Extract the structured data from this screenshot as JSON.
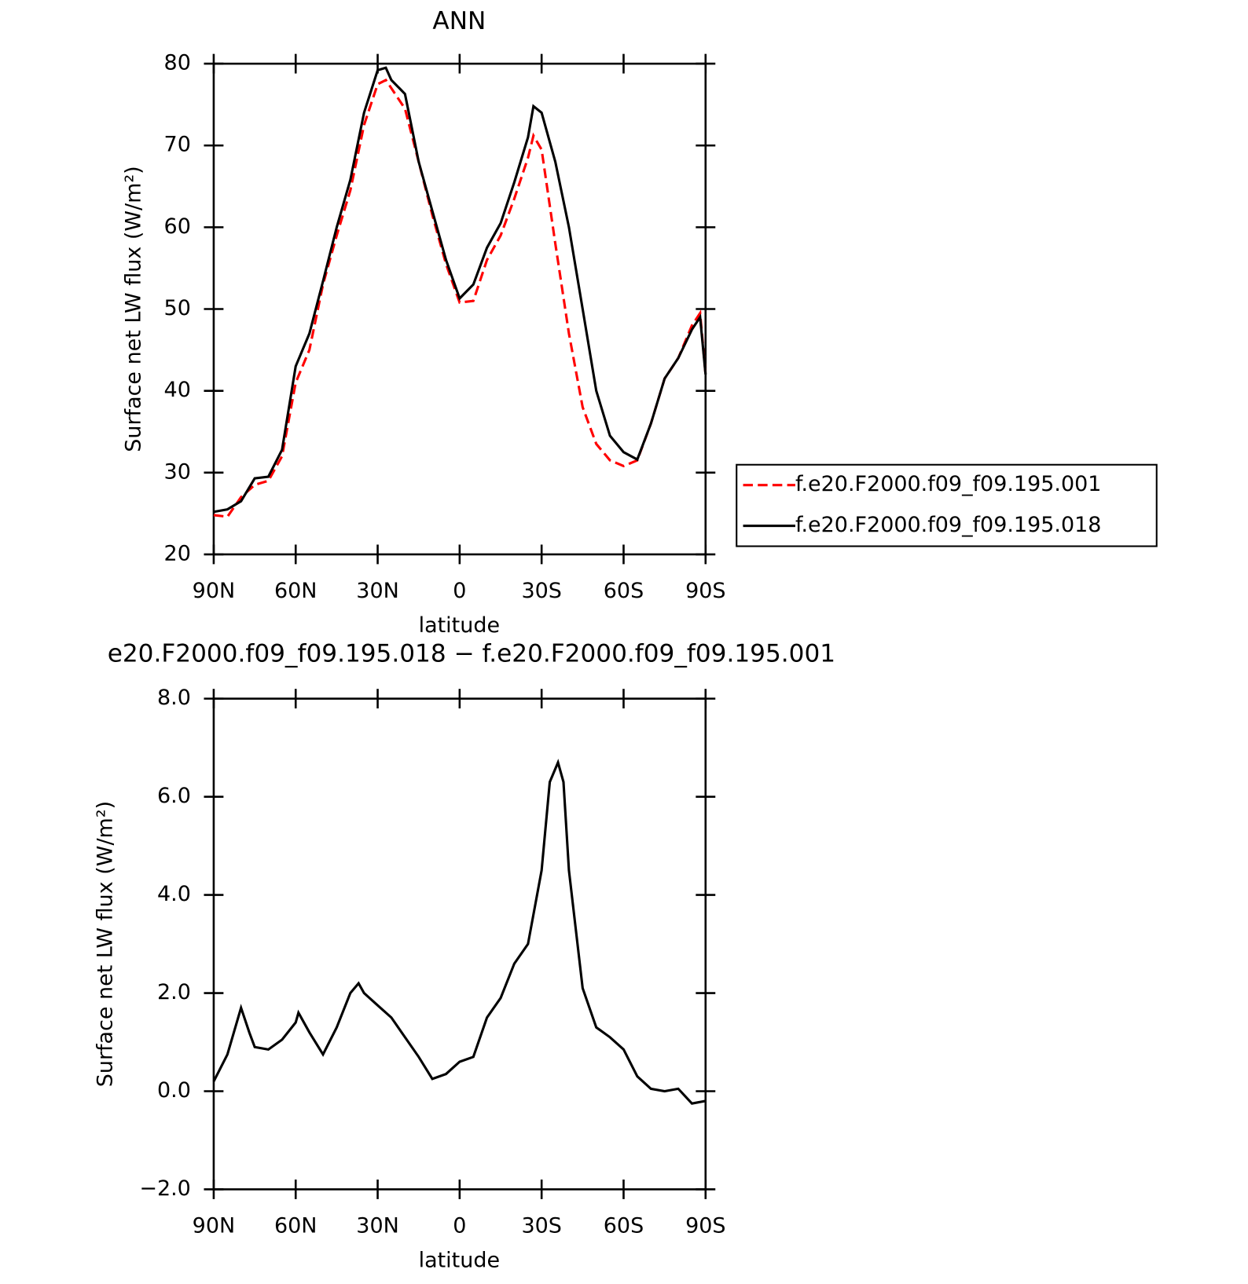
{
  "chart_data": [
    {
      "type": "line",
      "title": "ANN",
      "xlabel": "latitude",
      "ylabel": "Surface net LW flux (W/m²)",
      "x": [
        90,
        85,
        80,
        75,
        70,
        65,
        60,
        55,
        50,
        45,
        40,
        35,
        30,
        27,
        25,
        20,
        15,
        10,
        5,
        0,
        -5,
        -10,
        -15,
        -20,
        -25,
        -27,
        -30,
        -35,
        -40,
        -45,
        -50,
        -55,
        -60,
        -65,
        -70,
        -75,
        -80,
        -85,
        -88,
        -90
      ],
      "series": [
        {
          "name": "f.e20.F2000.f09_f09.195.001",
          "color": "#ff0000",
          "dashed": true,
          "values": [
            24.8,
            24.6,
            27,
            28.5,
            29,
            32,
            41,
            45,
            53,
            59,
            64.5,
            72.5,
            77.5,
            78,
            77,
            74.5,
            68,
            61.5,
            55.5,
            50.8,
            51,
            56,
            59,
            63.5,
            68.5,
            71.2,
            69.5,
            58,
            47,
            38,
            33.5,
            31.5,
            30.8,
            31.5,
            36,
            41.5,
            44,
            48,
            49.5,
            42
          ]
        },
        {
          "name": "f.e20.F2000.f09_f09.195.018",
          "color": "#000000",
          "dashed": false,
          "values": [
            25.2,
            25.5,
            26.5,
            29.3,
            29.5,
            32.8,
            43,
            47,
            53.4,
            60,
            65.8,
            74,
            79.2,
            79.5,
            78,
            76.3,
            68,
            62,
            56,
            51.3,
            53,
            57.5,
            60.5,
            65.5,
            71,
            74.8,
            74,
            68,
            60,
            50,
            40,
            34.5,
            32.5,
            31.6,
            36,
            41.5,
            44,
            47.5,
            49,
            42
          ]
        }
      ],
      "xlim": [
        90,
        -90
      ],
      "xticks": [
        {
          "value": 90,
          "label": "90N"
        },
        {
          "value": 60,
          "label": "60N"
        },
        {
          "value": 30,
          "label": "30N"
        },
        0,
        {
          "value": -30,
          "label": "30S"
        },
        {
          "value": -60,
          "label": "60S"
        },
        {
          "value": -90,
          "label": "90S"
        }
      ],
      "ylim": [
        20,
        80
      ],
      "yticks": [
        20,
        30,
        40,
        50,
        60,
        70,
        80
      ],
      "legend": "right"
    },
    {
      "type": "line",
      "title": "e20.F2000.f09_f09.195.018 − f.e20.F2000.f09_f09.195.001",
      "xlabel": "latitude",
      "ylabel": "Surface net LW flux (W/m²)",
      "x": [
        90,
        85,
        80,
        77,
        75,
        70,
        65,
        60,
        59,
        55,
        50,
        45,
        40,
        37,
        35,
        30,
        25,
        20,
        15,
        10,
        5,
        0,
        -5,
        -10,
        -15,
        -20,
        -25,
        -30,
        -33,
        -36,
        -38,
        -40,
        -45,
        -50,
        -55,
        -60,
        -65,
        -70,
        -75,
        -80,
        -85,
        -90
      ],
      "series": [
        {
          "name": null,
          "color": "#000000",
          "dashed": false,
          "values": [
            0.2,
            0.75,
            1.7,
            1.2,
            0.9,
            0.85,
            1.05,
            1.4,
            1.6,
            1.2,
            0.75,
            1.3,
            2.0,
            2.2,
            2.0,
            1.75,
            1.5,
            1.1,
            0.7,
            0.25,
            0.35,
            0.6,
            0.7,
            1.5,
            1.9,
            2.6,
            3.0,
            4.5,
            6.3,
            6.7,
            6.3,
            4.5,
            2.1,
            1.3,
            1.1,
            0.85,
            0.3,
            0.05,
            0.0,
            0.05,
            -0.25,
            -0.2
          ]
        }
      ],
      "xlim": [
        90,
        -90
      ],
      "xticks": [
        {
          "value": 90,
          "label": "90N"
        },
        {
          "value": 60,
          "label": "60N"
        },
        {
          "value": 30,
          "label": "30N"
        },
        0,
        {
          "value": -30,
          "label": "30S"
        },
        {
          "value": -60,
          "label": "60S"
        },
        {
          "value": -90,
          "label": "90S"
        }
      ],
      "ylim": [
        -2,
        8
      ],
      "yticks": [
        {
          "value": -2,
          "label": "−2.0"
        },
        {
          "value": 0,
          "label": "0.0"
        },
        {
          "value": 2,
          "label": "2.0"
        },
        {
          "value": 4,
          "label": "4.0"
        },
        {
          "value": 6,
          "label": "6.0"
        },
        {
          "value": 8,
          "label": "8.0"
        }
      ]
    }
  ]
}
